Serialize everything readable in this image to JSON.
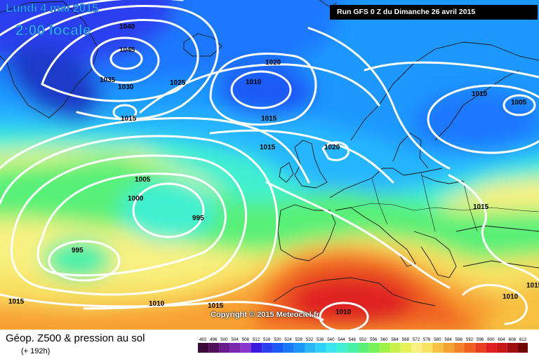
{
  "header": {
    "date": "Lundi 4 mai 2015",
    "time": "2:00 locale",
    "run": "Run GFS 0 Z du Dimanche 26 avril 2015"
  },
  "copyright": "Copyright © 2015 Meteociel.fr",
  "footer": {
    "title": "Géop. Z500 & pression au sol",
    "step": "(+ 192h)"
  },
  "legend": {
    "values": [
      "492",
      "496",
      "500",
      "504",
      "508",
      "512",
      "516",
      "520",
      "524",
      "528",
      "532",
      "536",
      "540",
      "544",
      "548",
      "552",
      "556",
      "560",
      "564",
      "568",
      "572",
      "576",
      "580",
      "584",
      "588",
      "592",
      "596",
      "600",
      "604",
      "608",
      "612"
    ],
    "colors": [
      "#3a0a3a",
      "#50105a",
      "#6a1a8a",
      "#7a28b0",
      "#8838d0",
      "#3a1ae0",
      "#2a40f0",
      "#1a5af8",
      "#1a78ff",
      "#1a98ff",
      "#28b6ff",
      "#30d0ff",
      "#38e6f0",
      "#40f0d0",
      "#48f0a8",
      "#58f078",
      "#78f058",
      "#a0f048",
      "#c8f048",
      "#e8f058",
      "#f8f080",
      "#f8e060",
      "#f8c040",
      "#f8a030",
      "#f88028",
      "#f06020",
      "#e84020",
      "#e02020",
      "#c81818",
      "#a01010",
      "#700808"
    ]
  },
  "isobar_labels": [
    {
      "text": "1040"
    },
    {
      "text": "1045"
    },
    {
      "text": "1035"
    },
    {
      "text": "1030"
    },
    {
      "text": "1025"
    },
    {
      "text": "1015"
    },
    {
      "text": "1020"
    },
    {
      "text": "1010"
    },
    {
      "text": "1015"
    },
    {
      "text": "1015"
    },
    {
      "text": "1020"
    },
    {
      "text": "1010"
    },
    {
      "text": "1005"
    },
    {
      "text": "1005"
    },
    {
      "text": "1000"
    },
    {
      "text": "995"
    },
    {
      "text": "995"
    },
    {
      "text": "1015"
    },
    {
      "text": "1015"
    },
    {
      "text": "1010"
    },
    {
      "text": "1015"
    },
    {
      "text": "1010"
    },
    {
      "text": "1010"
    },
    {
      "text": "1015"
    }
  ]
}
